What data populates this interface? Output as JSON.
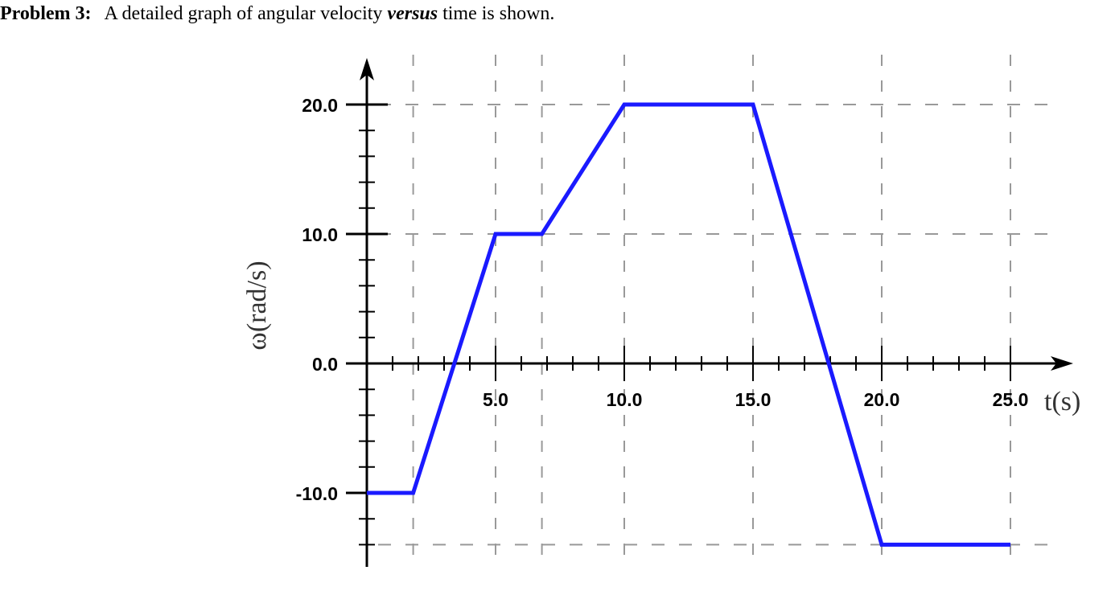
{
  "problem": {
    "label": "Problem 3:",
    "text_before": "A detailed graph of angular velocity ",
    "text_italic": "versus",
    "text_after": " time is shown."
  },
  "chart_data": {
    "type": "line",
    "title": "",
    "xlabel": "t(s)",
    "ylabel": "ω(rad/s)",
    "xlim": [
      0,
      25.5
    ],
    "ylim": [
      -14,
      22
    ],
    "grid": true,
    "x_ticks": [
      5.0,
      10.0,
      15.0,
      20.0,
      25.0
    ],
    "x_tick_labels": [
      "5.0",
      "10.0",
      "15.0",
      "20.0",
      "25.0"
    ],
    "y_ticks": [
      -10.0,
      0.0,
      10.0,
      20.0
    ],
    "y_tick_labels": [
      "-10.0",
      "0.0",
      "10.0",
      "20.0"
    ],
    "x_gridlines": [
      1.8,
      5.0,
      6.8,
      10.0,
      15.0,
      20.0,
      25.0
    ],
    "y_gridlines": [
      -14.0,
      10.0,
      20.0
    ],
    "series": [
      {
        "color": "#1a1aff",
        "x": [
          0,
          1.8,
          5.0,
          6.8,
          10.0,
          15.0,
          20.0,
          25.0
        ],
        "y": [
          -10,
          -10,
          10,
          10,
          20,
          20,
          -14,
          -14
        ]
      }
    ],
    "colors": {
      "line": "#1a1aff",
      "grid": "#999999",
      "axis": "#000000"
    }
  }
}
